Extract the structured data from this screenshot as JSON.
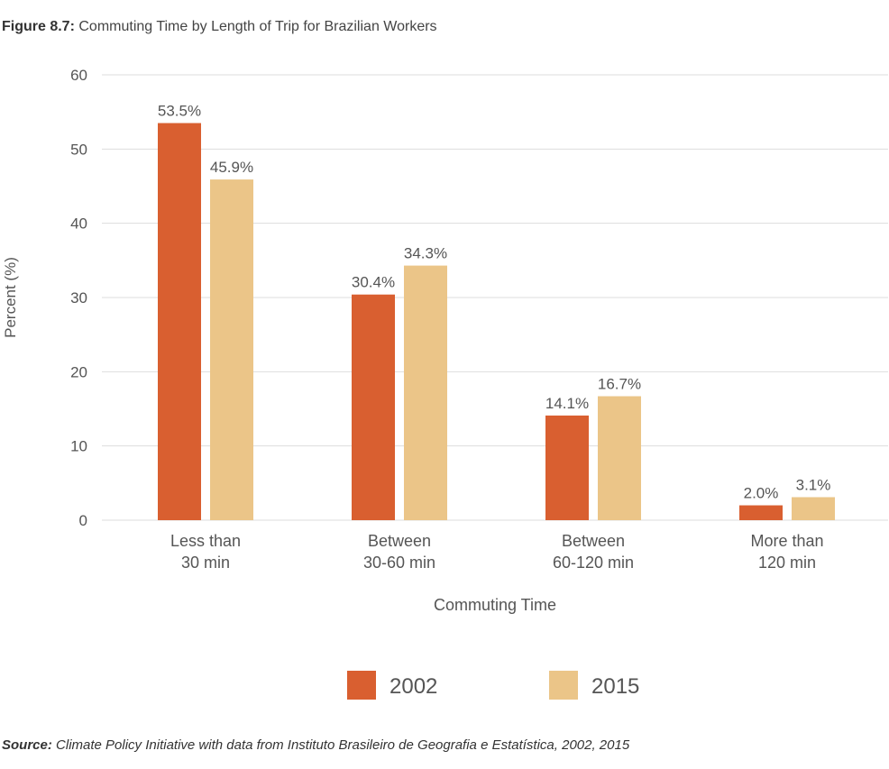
{
  "figure": {
    "label": "Figure 8.7:",
    "title": "Commuting Time by Length of Trip for Brazilian Workers"
  },
  "source": {
    "label": "Source:",
    "text": "Climate Policy Initiative with data from Instituto Brasileiro de Geografia e Estatística, 2002, 2015"
  },
  "chart_data": {
    "type": "bar",
    "title": "Commuting Time by Length of Trip for Brazilian Workers",
    "xlabel": "Commuting Time",
    "ylabel": "Percent (%)",
    "ylim": [
      0,
      60
    ],
    "yticks": [
      0,
      10,
      20,
      30,
      40,
      50,
      60
    ],
    "grid": true,
    "legend_position": "bottom-center",
    "categories": [
      [
        "Less than",
        "30 min"
      ],
      [
        "Between",
        "30-60 min"
      ],
      [
        "Between",
        "60-120 min"
      ],
      [
        "More than",
        "120 min"
      ]
    ],
    "series": [
      {
        "name": "2002",
        "color": "#d95f30",
        "values": [
          53.5,
          30.4,
          14.1,
          2.0
        ],
        "labels": [
          "53.5%",
          "30.4%",
          "14.1%",
          "2.0%"
        ]
      },
      {
        "name": "2015",
        "color": "#ebc588",
        "values": [
          45.9,
          34.3,
          16.7,
          3.1
        ],
        "labels": [
          "45.9%",
          "34.3%",
          "16.7%",
          "3.1%"
        ]
      }
    ],
    "colors": {
      "grid": "#dddddd",
      "text": "#555555"
    }
  }
}
